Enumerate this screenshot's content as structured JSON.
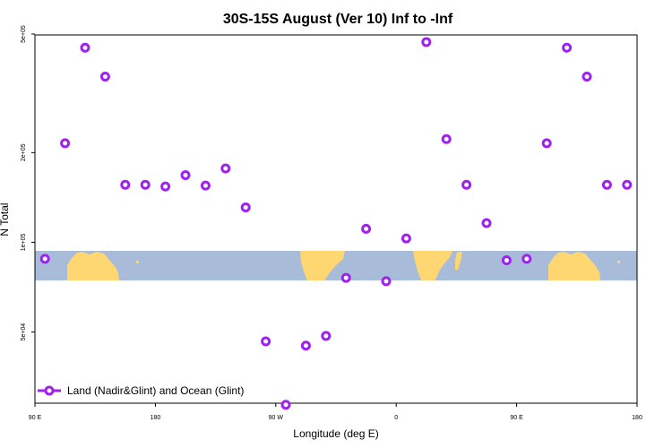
{
  "chart_data": {
    "type": "scatter",
    "title": "30S-15S August (Ver 10)   Inf to -Inf",
    "xlabel": "Longitude (deg E)",
    "ylabel": "N Total",
    "y_scale": "log",
    "xlim": [
      90,
      540
    ],
    "ylim_log10": [
      4.46,
      5.696
    ],
    "x_ticks": [
      {
        "value": 90,
        "label": "90 E"
      },
      {
        "value": 180,
        "label": "180"
      },
      {
        "value": 270,
        "label": "90 W"
      },
      {
        "value": 360,
        "label": "0"
      },
      {
        "value": 450,
        "label": "90 E"
      },
      {
        "value": 540,
        "label": "180"
      }
    ],
    "y_ticks": [
      {
        "value": 50000,
        "label": "5e+04"
      },
      {
        "value": 100000,
        "label": "1e+05"
      },
      {
        "value": 200000,
        "label": "2e+05"
      },
      {
        "value": 500000,
        "label": "5e+05"
      }
    ],
    "series": [
      {
        "name": "Land (Nadir&Glint) and Ocean (Glint)",
        "color": "#a020f0",
        "x": [
          97.5,
          112.5,
          127.5,
          142.5,
          157.5,
          172.5,
          187.5,
          202.5,
          217.5,
          232.5,
          247.5,
          262.5,
          277.5,
          292.5,
          307.5,
          322.5,
          337.5,
          352.5,
          367.5,
          382.5,
          397.5,
          412.5,
          427.5,
          442.5,
          457.5,
          472.5,
          487.5,
          502.5,
          517.5,
          532.5
        ],
        "y": [
          88000,
          215000,
          450000,
          360000,
          156000,
          156000,
          154000,
          168000,
          155000,
          177000,
          131000,
          46500,
          28500,
          45000,
          48500,
          76000,
          111000,
          74000,
          103000,
          470000,
          222000,
          156000,
          116000,
          87000,
          88000,
          215000,
          450000,
          360000,
          156000,
          156000
        ]
      }
    ],
    "legend": {
      "position": "bottom-left",
      "label": "Land (Nadir&Glint) and Ocean (Glint)"
    },
    "map_band": {
      "ocean_color": "#a8bcda",
      "land_color": "#fed772"
    }
  }
}
